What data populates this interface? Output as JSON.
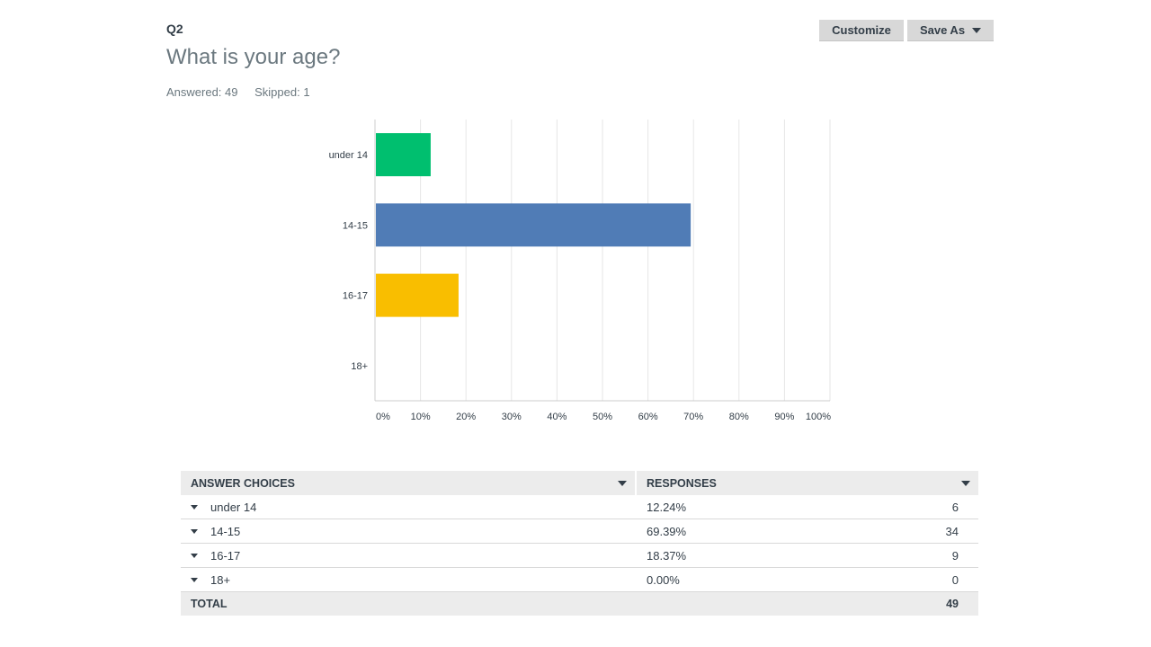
{
  "question": {
    "number": "Q2",
    "title": "What is your age?",
    "answered": "Answered: 49",
    "skipped": "Skipped: 1"
  },
  "toolbar": {
    "customize_label": "Customize",
    "save_as_label": "Save As",
    "save_as_icon": "caret-down-icon"
  },
  "chart_data": {
    "type": "bar",
    "orientation": "horizontal",
    "categories": [
      "under 14",
      "14-15",
      "16-17",
      "18+"
    ],
    "values": [
      12.24,
      69.39,
      18.37,
      0.0
    ],
    "colors": [
      "#00bf6f",
      "#507cb6",
      "#f9be00",
      "#6bc8cd"
    ],
    "xlim": [
      0,
      100
    ],
    "xticks": [
      "0%",
      "10%",
      "20%",
      "30%",
      "40%",
      "50%",
      "60%",
      "70%",
      "80%",
      "90%",
      "100%"
    ],
    "grid": true
  },
  "table": {
    "headers": {
      "choices": "ANSWER CHOICES",
      "responses": "RESPONSES"
    },
    "rows": [
      {
        "choice": "under 14",
        "percent": "12.24%",
        "count": "6"
      },
      {
        "choice": "14-15",
        "percent": "69.39%",
        "count": "34"
      },
      {
        "choice": "16-17",
        "percent": "18.37%",
        "count": "9"
      },
      {
        "choice": "18+",
        "percent": "0.00%",
        "count": "0"
      }
    ],
    "total_label": "TOTAL",
    "total_count": "49"
  }
}
